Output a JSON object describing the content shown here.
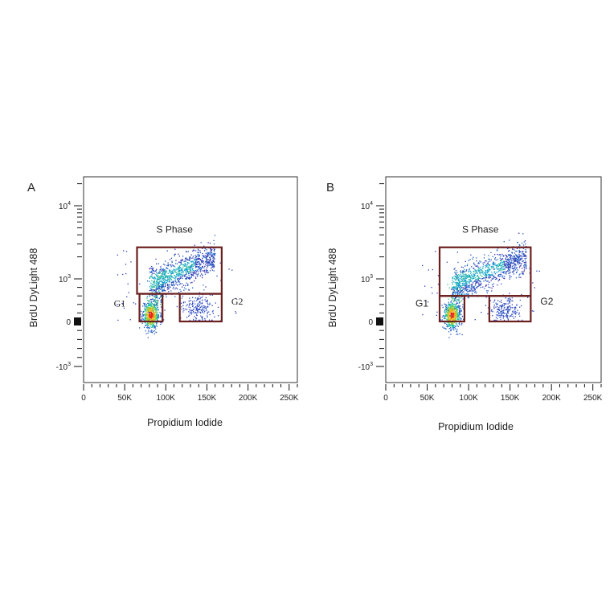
{
  "chart_data": [
    {
      "panel": "A",
      "type": "scatter",
      "title": "",
      "xlabel": "Propidium Iodide",
      "ylabel": "BrdU DyLight 488",
      "xlim": [
        0,
        260000
      ],
      "x_ticks": [
        0,
        50000,
        100000,
        150000,
        200000,
        250000
      ],
      "x_tick_labels": [
        "0",
        "50K",
        "100K",
        "150K",
        "200K",
        "250K"
      ],
      "y_scale": "biexponential",
      "y_ticks": [
        "-10^3",
        "0",
        "10^3",
        "10^4"
      ],
      "gates": [
        {
          "name": "S Phase",
          "x_range": [
            65000,
            168000
          ],
          "y_range": [
            650,
            2700
          ]
        },
        {
          "name": "G1",
          "x_range": [
            68000,
            96000
          ],
          "y_range": [
            0,
            650
          ]
        },
        {
          "name": "G2",
          "x_range": [
            117000,
            168000
          ],
          "y_range": [
            0,
            650
          ]
        }
      ],
      "populations": [
        {
          "name": "G1",
          "x_center": 82000,
          "y_center": 150,
          "color": "#e8231a"
        },
        {
          "name": "S Phase",
          "x_range": [
            80000,
            160000
          ],
          "y_range": [
            650,
            2500
          ],
          "color": "#1e8fd0"
        },
        {
          "name": "G2",
          "x_center": 140000,
          "y_center": 300,
          "color": "#2448c8"
        }
      ]
    },
    {
      "panel": "B",
      "type": "scatter",
      "title": "",
      "xlabel": "Propidium Iodide",
      "ylabel": "BrdU DyLight 488",
      "xlim": [
        0,
        260000
      ],
      "x_ticks": [
        0,
        50000,
        100000,
        150000,
        200000,
        250000
      ],
      "x_tick_labels": [
        "0",
        "50K",
        "100K",
        "150K",
        "200K",
        "250K"
      ],
      "y_scale": "biexponential",
      "y_ticks": [
        "-10^3",
        "0",
        "10^3",
        "10^4"
      ],
      "gates": [
        {
          "name": "S Phase",
          "x_range": [
            65000,
            175000
          ],
          "y_range": [
            600,
            2700
          ]
        },
        {
          "name": "G1",
          "x_range": [
            65000,
            95000
          ],
          "y_range": [
            0,
            600
          ]
        },
        {
          "name": "G2",
          "x_range": [
            125000,
            175000
          ],
          "y_range": [
            0,
            600
          ]
        }
      ],
      "populations": [
        {
          "name": "G1",
          "x_center": 80000,
          "y_center": 150,
          "color": "#e8231a"
        },
        {
          "name": "S Phase",
          "x_range": [
            80000,
            170000
          ],
          "y_range": [
            600,
            2500
          ],
          "color": "#1e8fd0"
        },
        {
          "name": "G2",
          "x_center": 145000,
          "y_center": 300,
          "color": "#2448c8"
        }
      ]
    }
  ],
  "panels": [
    {
      "letter": "A",
      "s_label": "S Phase",
      "g1_label": "G1",
      "g2_label": "G2",
      "xlabel": "Propidium Iodide",
      "ylabel": "BrdU DyLight 488"
    },
    {
      "letter": "B",
      "s_label": "S Phase",
      "g1_label": "G1",
      "g2_label": "G2",
      "xlabel": "Propidium Iodide",
      "ylabel": "BrdU DyLight 488"
    }
  ]
}
